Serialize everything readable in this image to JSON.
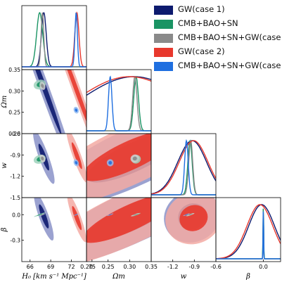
{
  "chart_data": {
    "type": "corner",
    "parameters": [
      {
        "key": "H0",
        "label": "H₀ [km s⁻¹ Mpc⁻¹]",
        "range": [
          64.8,
          74.2
        ],
        "ticks": [
          "66",
          "69",
          "72",
          "75"
        ],
        "tick_values": [
          66,
          69,
          72,
          75
        ]
      },
      {
        "key": "Om",
        "label": "Ωm",
        "range": [
          0.2,
          0.35
        ],
        "ticks": [
          "0.20",
          "0.25",
          "0.30",
          "0.35"
        ],
        "tick_values": [
          0.2,
          0.25,
          0.3,
          0.35
        ]
      },
      {
        "key": "w",
        "label": "w",
        "range": [
          -1.5,
          -0.6
        ],
        "ticks": [
          "-1.2",
          "-0.9",
          "-0.6"
        ],
        "tick_values": [
          -1.2,
          -0.9,
          -0.6
        ],
        "row_ticks": [
          "-0.6",
          "-0.9",
          "-1.2",
          "-1.5"
        ],
        "row_tick_values": [
          -0.6,
          -0.9,
          -1.2,
          -1.5
        ]
      },
      {
        "key": "beta",
        "label": "β",
        "range": [
          -0.55,
          0.2
        ],
        "ticks": [
          "0.0"
        ],
        "tick_values": [
          0.0
        ],
        "row_ticks": [
          "0.0",
          "-0.3"
        ],
        "row_tick_values": [
          0.0,
          -0.3
        ]
      }
    ],
    "row_tick_labels": {
      "Om": [
        "0.35",
        "0.30",
        "0.25",
        "0.20"
      ],
      "Om_values": [
        0.35,
        0.3,
        0.25,
        0.2
      ]
    },
    "series": [
      {
        "name": "GW(case 1)",
        "color": "#0d1a6e",
        "light": "#8a92c8",
        "mean": {
          "H0": 68.0,
          "Om": 0.31,
          "w": -0.93,
          "beta": -0.02
        },
        "sigma": {
          "H0": 0.35,
          "Om": 0.12,
          "w": 0.2,
          "beta": 0.15
        }
      },
      {
        "name": "CMB+BAO+SN",
        "color": "#1a9464",
        "light": "#9fd2bc",
        "mean": {
          "H0": 67.4,
          "Om": 0.315,
          "w": -0.96,
          "beta": 0.0
        },
        "sigma": {
          "H0": 0.45,
          "Om": 0.0055,
          "w": 0.03,
          "beta": 0.004
        }
      },
      {
        "name": "CMB+BAO+SN+GW(case 1)",
        "color": "#8a8a8a",
        "light": "#cfcfcf",
        "mean": {
          "H0": 67.8,
          "Om": 0.312,
          "w": -0.95,
          "beta": 0.0
        },
        "sigma": {
          "H0": 0.2,
          "Om": 0.005,
          "w": 0.028,
          "beta": 0.003
        }
      },
      {
        "name": "GW(case 2)",
        "color": "#e8382d",
        "light": "#f3aaa3",
        "mean": {
          "H0": 72.8,
          "Om": 0.3,
          "w": -0.91,
          "beta": -0.04
        },
        "sigma": {
          "H0": 0.3,
          "Om": 0.12,
          "w": 0.2,
          "beta": 0.15
        }
      },
      {
        "name": "CMB+BAO+SN+GW(case 2)",
        "color": "#1f6fe0",
        "light": "#8fb8f0",
        "mean": {
          "H0": 72.7,
          "Om": 0.255,
          "w": -1.01,
          "beta": 0.0
        },
        "sigma": {
          "H0": 0.18,
          "Om": 0.004,
          "w": 0.025,
          "beta": 0.003
        }
      }
    ],
    "panel_titles": [],
    "legend_position": "top-right"
  },
  "legend": {
    "items": [
      {
        "label": "GW(case 1)",
        "color": "#0d1a6e"
      },
      {
        "label": "CMB+BAO+SN",
        "color": "#1a9464"
      },
      {
        "label": "CMB+BAO+SN+GW(case 1)",
        "color": "#8a8a8a"
      },
      {
        "label": "GW(case 2)",
        "color": "#e8382d"
      },
      {
        "label": "CMB+BAO+SN+GW(case 2)",
        "color": "#1f6fe0"
      }
    ]
  }
}
